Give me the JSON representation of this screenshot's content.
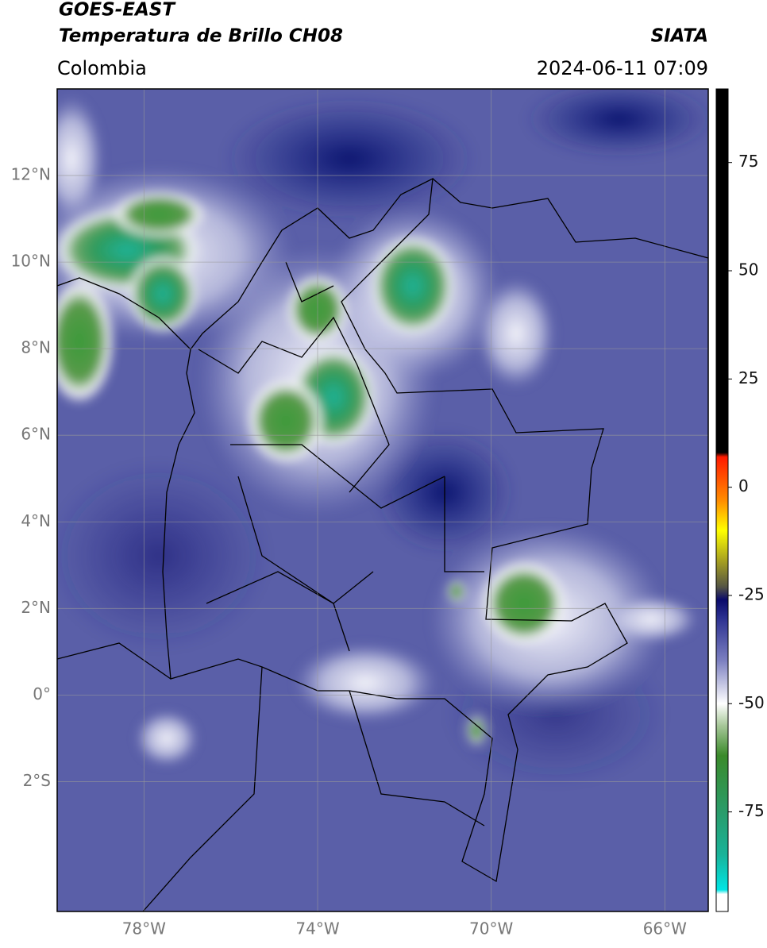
{
  "header": {
    "source": "GOES-EAST",
    "product": "Temperatura de Brillo CH08",
    "agency": "SIATA",
    "region": "Colombia",
    "datetime": "2024-06-11 07:09"
  },
  "map": {
    "xlim": [
      -80,
      -65
    ],
    "ylim": [
      -5,
      14
    ],
    "grid": true,
    "xticks": [
      {
        "value": -78,
        "label": "78°W"
      },
      {
        "value": -74,
        "label": "74°W"
      },
      {
        "value": -70,
        "label": "70°W"
      },
      {
        "value": -66,
        "label": "66°W"
      }
    ],
    "yticks": [
      {
        "value": 12,
        "label": "12°N"
      },
      {
        "value": 10,
        "label": "10°N"
      },
      {
        "value": 8,
        "label": "8°N"
      },
      {
        "value": 6,
        "label": "6°N"
      },
      {
        "value": 4,
        "label": "4°N"
      },
      {
        "value": 2,
        "label": "2°N"
      },
      {
        "value": 0,
        "label": "0°"
      },
      {
        "value": -2,
        "label": "2°S"
      }
    ]
  },
  "colorbar": {
    "lim": [
      -98,
      92
    ],
    "ticks": [
      75,
      50,
      25,
      0,
      -25,
      -50,
      -75
    ],
    "stops": [
      {
        "value": -98,
        "color": "#ffffff"
      },
      {
        "value": -94,
        "color": "#ffffff"
      },
      {
        "value": -93,
        "color": "#00e5e5"
      },
      {
        "value": -85,
        "color": "#19b39a"
      },
      {
        "value": -75,
        "color": "#2a9c6a"
      },
      {
        "value": -62,
        "color": "#3a8a2a"
      },
      {
        "value": -55,
        "color": "#a8c89a"
      },
      {
        "value": -50,
        "color": "#ffffff"
      },
      {
        "value": -40,
        "color": "#7b7fc0"
      },
      {
        "value": -30,
        "color": "#2a2f8f"
      },
      {
        "value": -26,
        "color": "#0a0a6a"
      },
      {
        "value": -23,
        "color": "#555544"
      },
      {
        "value": -17,
        "color": "#a6a020"
      },
      {
        "value": -10,
        "color": "#ffff00"
      },
      {
        "value": -3,
        "color": "#ff8c00"
      },
      {
        "value": 7,
        "color": "#ff1a00"
      },
      {
        "value": 8,
        "color": "#000000"
      },
      {
        "value": 92,
        "color": "#000000"
      }
    ]
  }
}
